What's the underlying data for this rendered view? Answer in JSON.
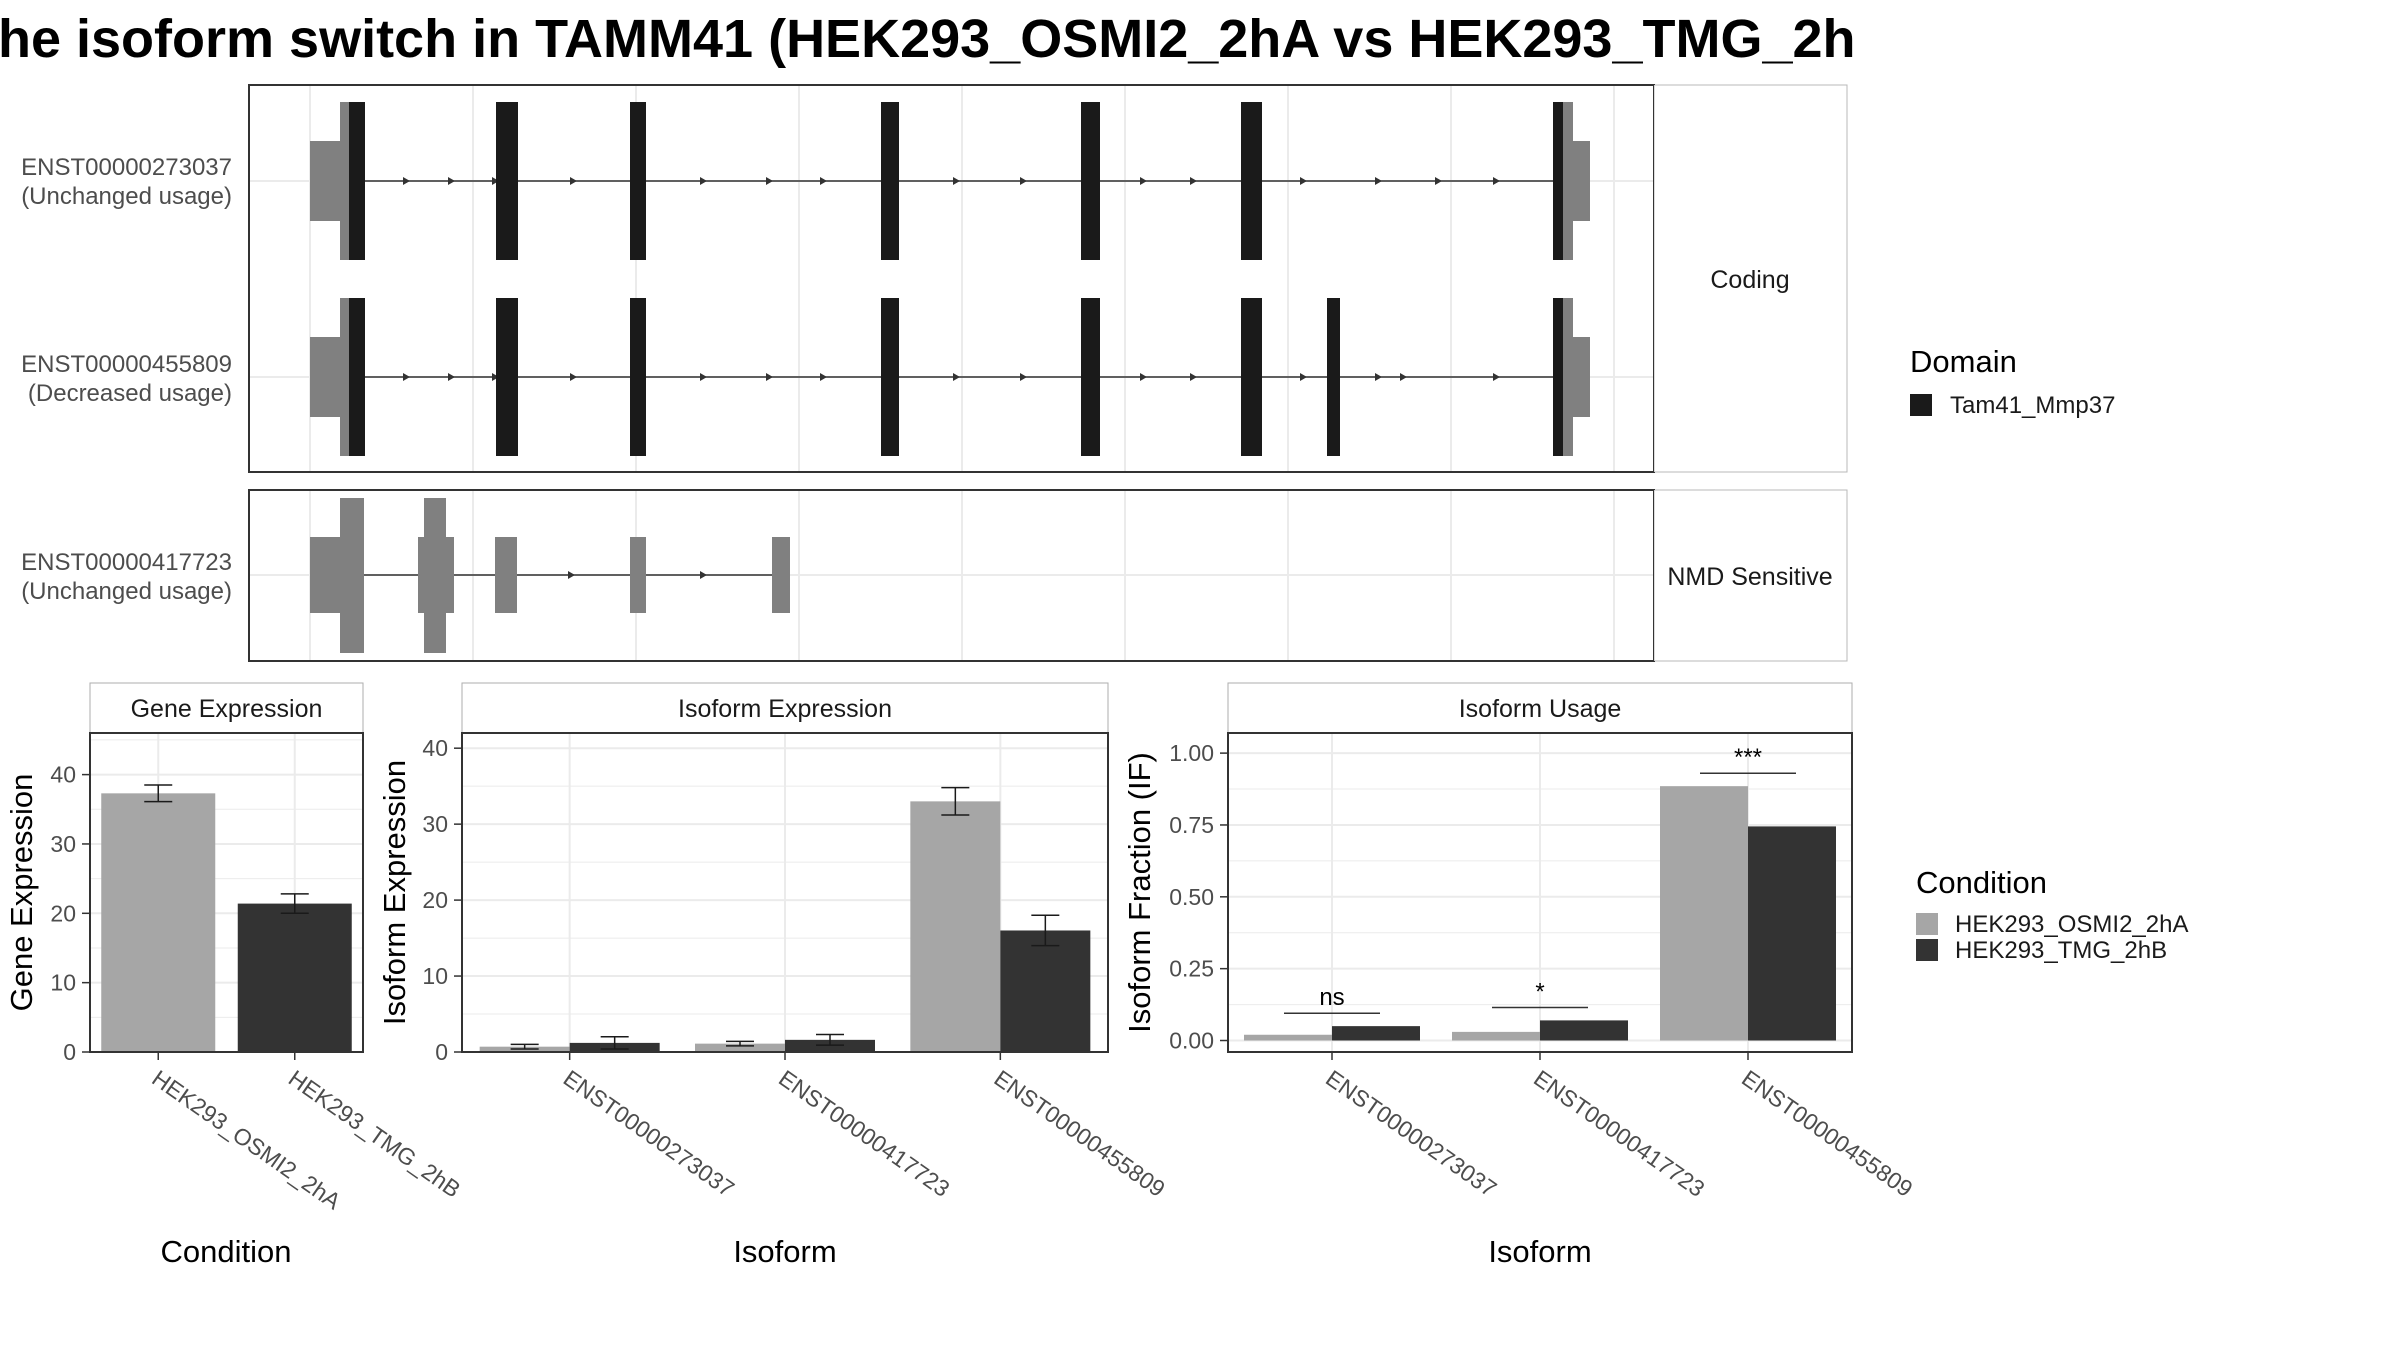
{
  "title": "he isoform switch in TAMM41 (HEK293_OSMI2_2hA vs HEK293_TMG_2h",
  "transcripts": {
    "facets": [
      {
        "label": "Coding",
        "isoforms": [
          {
            "id": "ENST00000273037",
            "usage": "(Unchanged usage)"
          },
          {
            "id": "ENST00000455809",
            "usage": "(Decreased usage)"
          }
        ]
      },
      {
        "label": "NMD Sensitive",
        "isoforms": [
          {
            "id": "ENST00000417723",
            "usage": "(Unchanged usage)"
          }
        ]
      }
    ]
  },
  "legend_domain": {
    "title": "Domain",
    "items": [
      {
        "label": "Tam41_Mmp37",
        "color": "#1a1a1a"
      }
    ]
  },
  "legend_condition": {
    "title": "Condition",
    "items": [
      {
        "label": "HEK293_OSMI2_2hA",
        "color": "#a6a6a6"
      },
      {
        "label": "HEK293_TMG_2hB",
        "color": "#333333"
      }
    ]
  },
  "colors": {
    "condA": "#a6a6a6",
    "condB": "#333333",
    "domain": "#1a1a1a",
    "utr": "#808080",
    "grid": "#ebebeb"
  },
  "chart_data": [
    {
      "type": "bar",
      "title": "Gene Expression",
      "xlabel": "Condition",
      "ylabel": "Gene Expression",
      "categories": [
        "HEK293_OSMI2_2hA",
        "HEK293_TMG_2hB"
      ],
      "values": [
        37.3,
        21.4
      ],
      "errors": [
        1.2,
        1.4
      ],
      "ylim": [
        0,
        46
      ],
      "yticks": [
        0,
        10,
        20,
        30,
        40
      ]
    },
    {
      "type": "bar",
      "title": "Isoform Expression",
      "xlabel": "Isoform",
      "ylabel": "Isoform Expression",
      "categories": [
        "ENST00000273037",
        "ENST00000417723",
        "ENST00000455809"
      ],
      "series": [
        {
          "name": "HEK293_OSMI2_2hA",
          "values": [
            0.7,
            1.1,
            33.0
          ],
          "errors": [
            0.3,
            0.3,
            1.8
          ]
        },
        {
          "name": "HEK293_TMG_2hB",
          "values": [
            1.2,
            1.6,
            16.0
          ],
          "errors": [
            0.8,
            0.7,
            2.0
          ]
        }
      ],
      "ylim": [
        0,
        42
      ],
      "yticks": [
        0,
        10,
        20,
        30,
        40
      ]
    },
    {
      "type": "bar",
      "title": "Isoform Usage",
      "xlabel": "Isoform",
      "ylabel": "Isoform Fraction (IF)",
      "categories": [
        "ENST00000273037",
        "ENST00000417723",
        "ENST00000455809"
      ],
      "series": [
        {
          "name": "HEK293_OSMI2_2hA",
          "values": [
            0.02,
            0.03,
            0.885
          ]
        },
        {
          "name": "HEK293_TMG_2hB",
          "values": [
            0.05,
            0.07,
            0.745
          ]
        }
      ],
      "significance": [
        "ns",
        "*",
        "***"
      ],
      "ylim": [
        -0.04,
        1.07
      ],
      "yticks": [
        "0.00",
        "0.25",
        "0.50",
        "0.75",
        "1.00"
      ]
    }
  ]
}
